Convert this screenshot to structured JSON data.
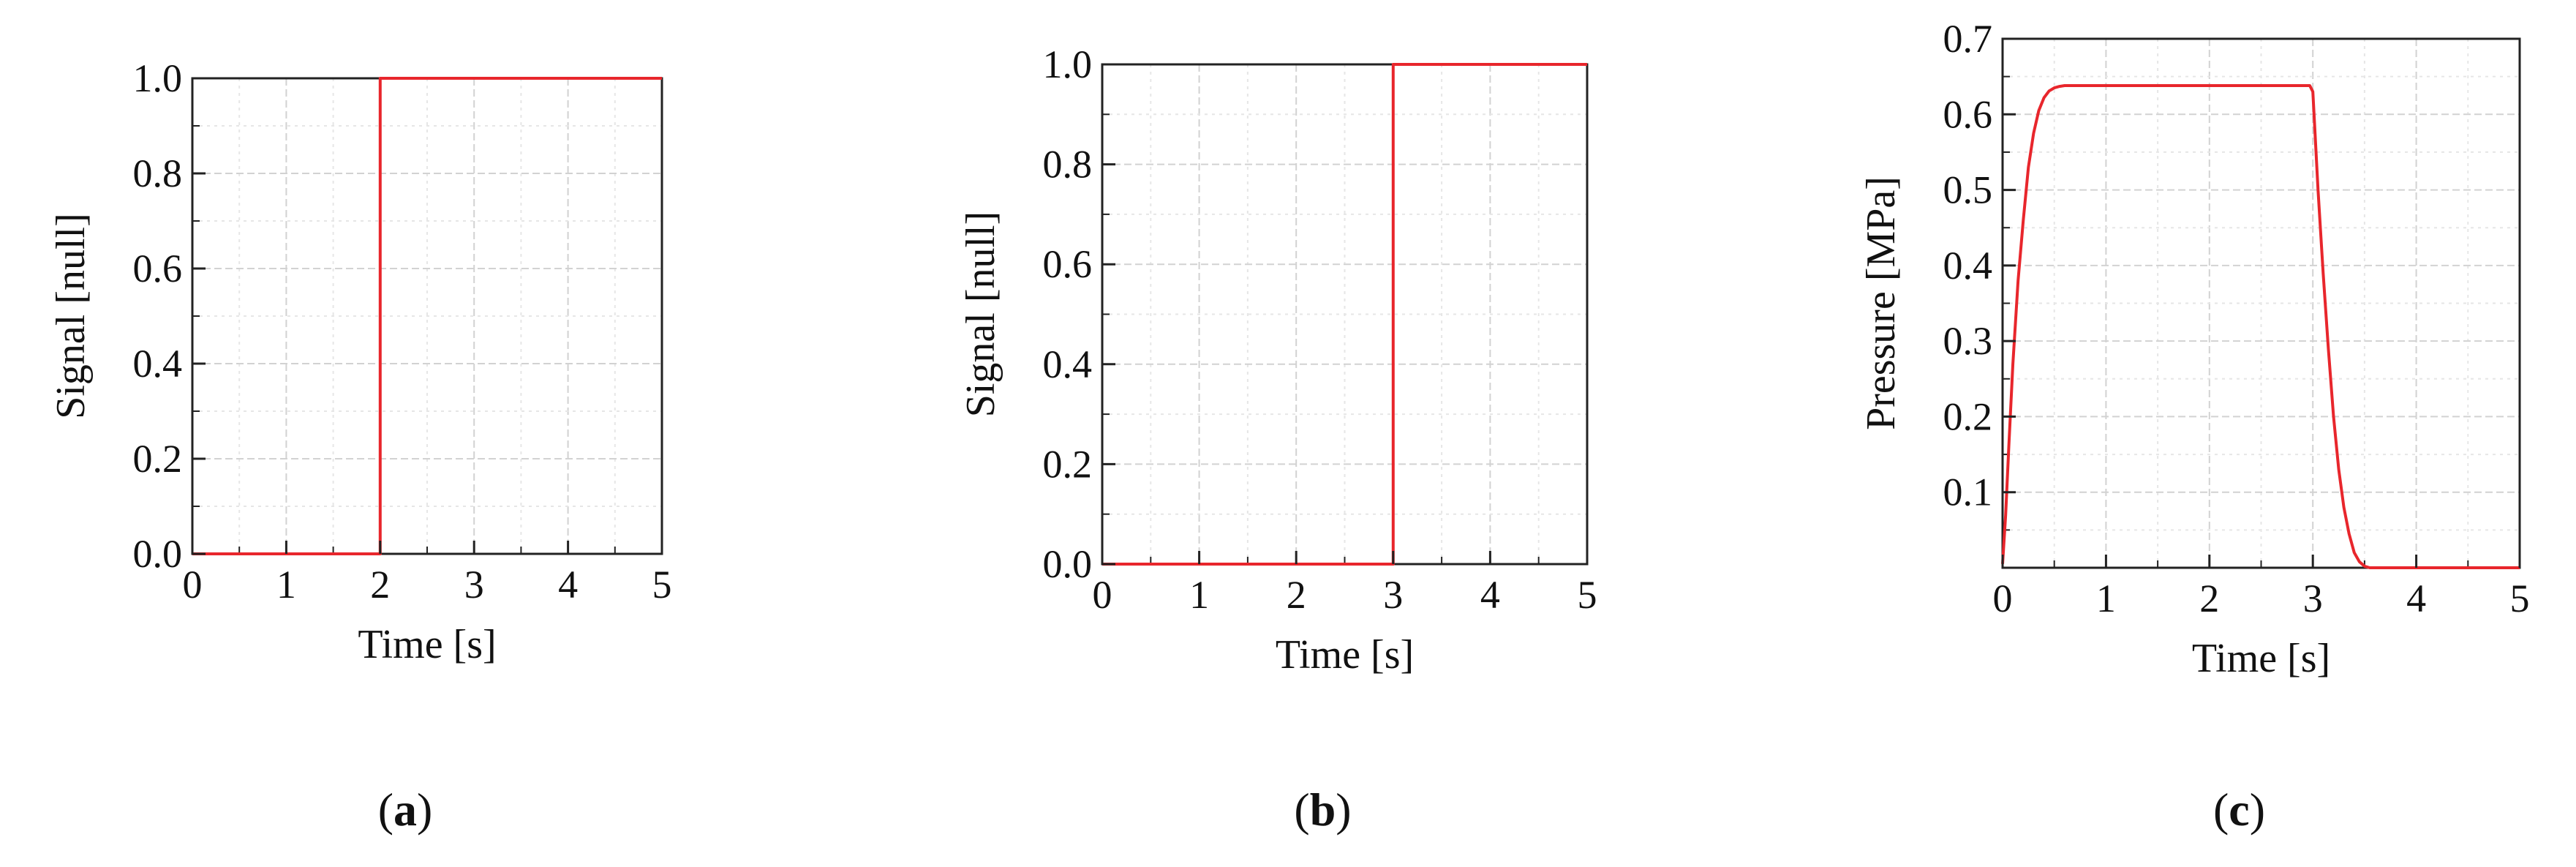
{
  "chart_data": [
    {
      "type": "line",
      "panel_label": "a",
      "xlabel": "Time [s]",
      "ylabel": "Signal [null]",
      "xlim": [
        0,
        5
      ],
      "ylim": [
        0,
        1
      ],
      "x_ticks": [
        0,
        1,
        2,
        3,
        4,
        5
      ],
      "y_ticks": [
        0.0,
        0.2,
        0.4,
        0.6,
        0.8,
        1.0
      ],
      "y_tick_labels": [
        "0.0",
        "0.2",
        "0.4",
        "0.6",
        "0.8",
        "1.0"
      ],
      "grid": true,
      "series": [
        {
          "color": "#e8262c",
          "x": [
            0,
            2,
            2,
            5
          ],
          "y": [
            0,
            0,
            1,
            1
          ]
        }
      ]
    },
    {
      "type": "line",
      "panel_label": "b",
      "xlabel": "Time [s]",
      "ylabel": "Signal [null]",
      "xlim": [
        0,
        5
      ],
      "ylim": [
        0,
        1
      ],
      "x_ticks": [
        0,
        1,
        2,
        3,
        4,
        5
      ],
      "y_ticks": [
        0.0,
        0.2,
        0.4,
        0.6,
        0.8,
        1.0
      ],
      "y_tick_labels": [
        "0.0",
        "0.2",
        "0.4",
        "0.6",
        "0.8",
        "1.0"
      ],
      "grid": true,
      "series": [
        {
          "color": "#e8262c",
          "x": [
            0,
            3,
            3,
            5
          ],
          "y": [
            0,
            0,
            1,
            1
          ]
        }
      ]
    },
    {
      "type": "line",
      "panel_label": "c",
      "xlabel": "Time [s]",
      "ylabel": "Pressure [MPa]",
      "xlim": [
        0,
        5
      ],
      "ylim": [
        0,
        0.7
      ],
      "x_ticks": [
        0,
        1,
        2,
        3,
        4,
        5
      ],
      "y_ticks": [
        0.1,
        0.2,
        0.3,
        0.4,
        0.5,
        0.6,
        0.7
      ],
      "y_tick_labels": [
        "0.1",
        "0.2",
        "0.3",
        "0.4",
        "0.5",
        "0.6",
        "0.7"
      ],
      "grid": true,
      "series": [
        {
          "color": "#e8262c",
          "x": [
            0,
            0.03,
            0.06,
            0.1,
            0.15,
            0.2,
            0.25,
            0.3,
            0.35,
            0.4,
            0.45,
            0.5,
            0.55,
            0.6,
            0.7,
            0.8,
            1.0,
            2.0,
            2.97,
            3.0,
            3.05,
            3.1,
            3.15,
            3.2,
            3.25,
            3.3,
            3.35,
            3.4,
            3.45,
            3.5,
            3.55,
            4.0,
            5.0
          ],
          "y": [
            0.005,
            0.07,
            0.16,
            0.27,
            0.38,
            0.46,
            0.53,
            0.575,
            0.605,
            0.622,
            0.631,
            0.635,
            0.637,
            0.638,
            0.638,
            0.638,
            0.638,
            0.638,
            0.638,
            0.63,
            0.5,
            0.39,
            0.29,
            0.2,
            0.13,
            0.08,
            0.045,
            0.02,
            0.008,
            0.002,
            0.0,
            0.0,
            0.0
          ]
        }
      ]
    }
  ]
}
